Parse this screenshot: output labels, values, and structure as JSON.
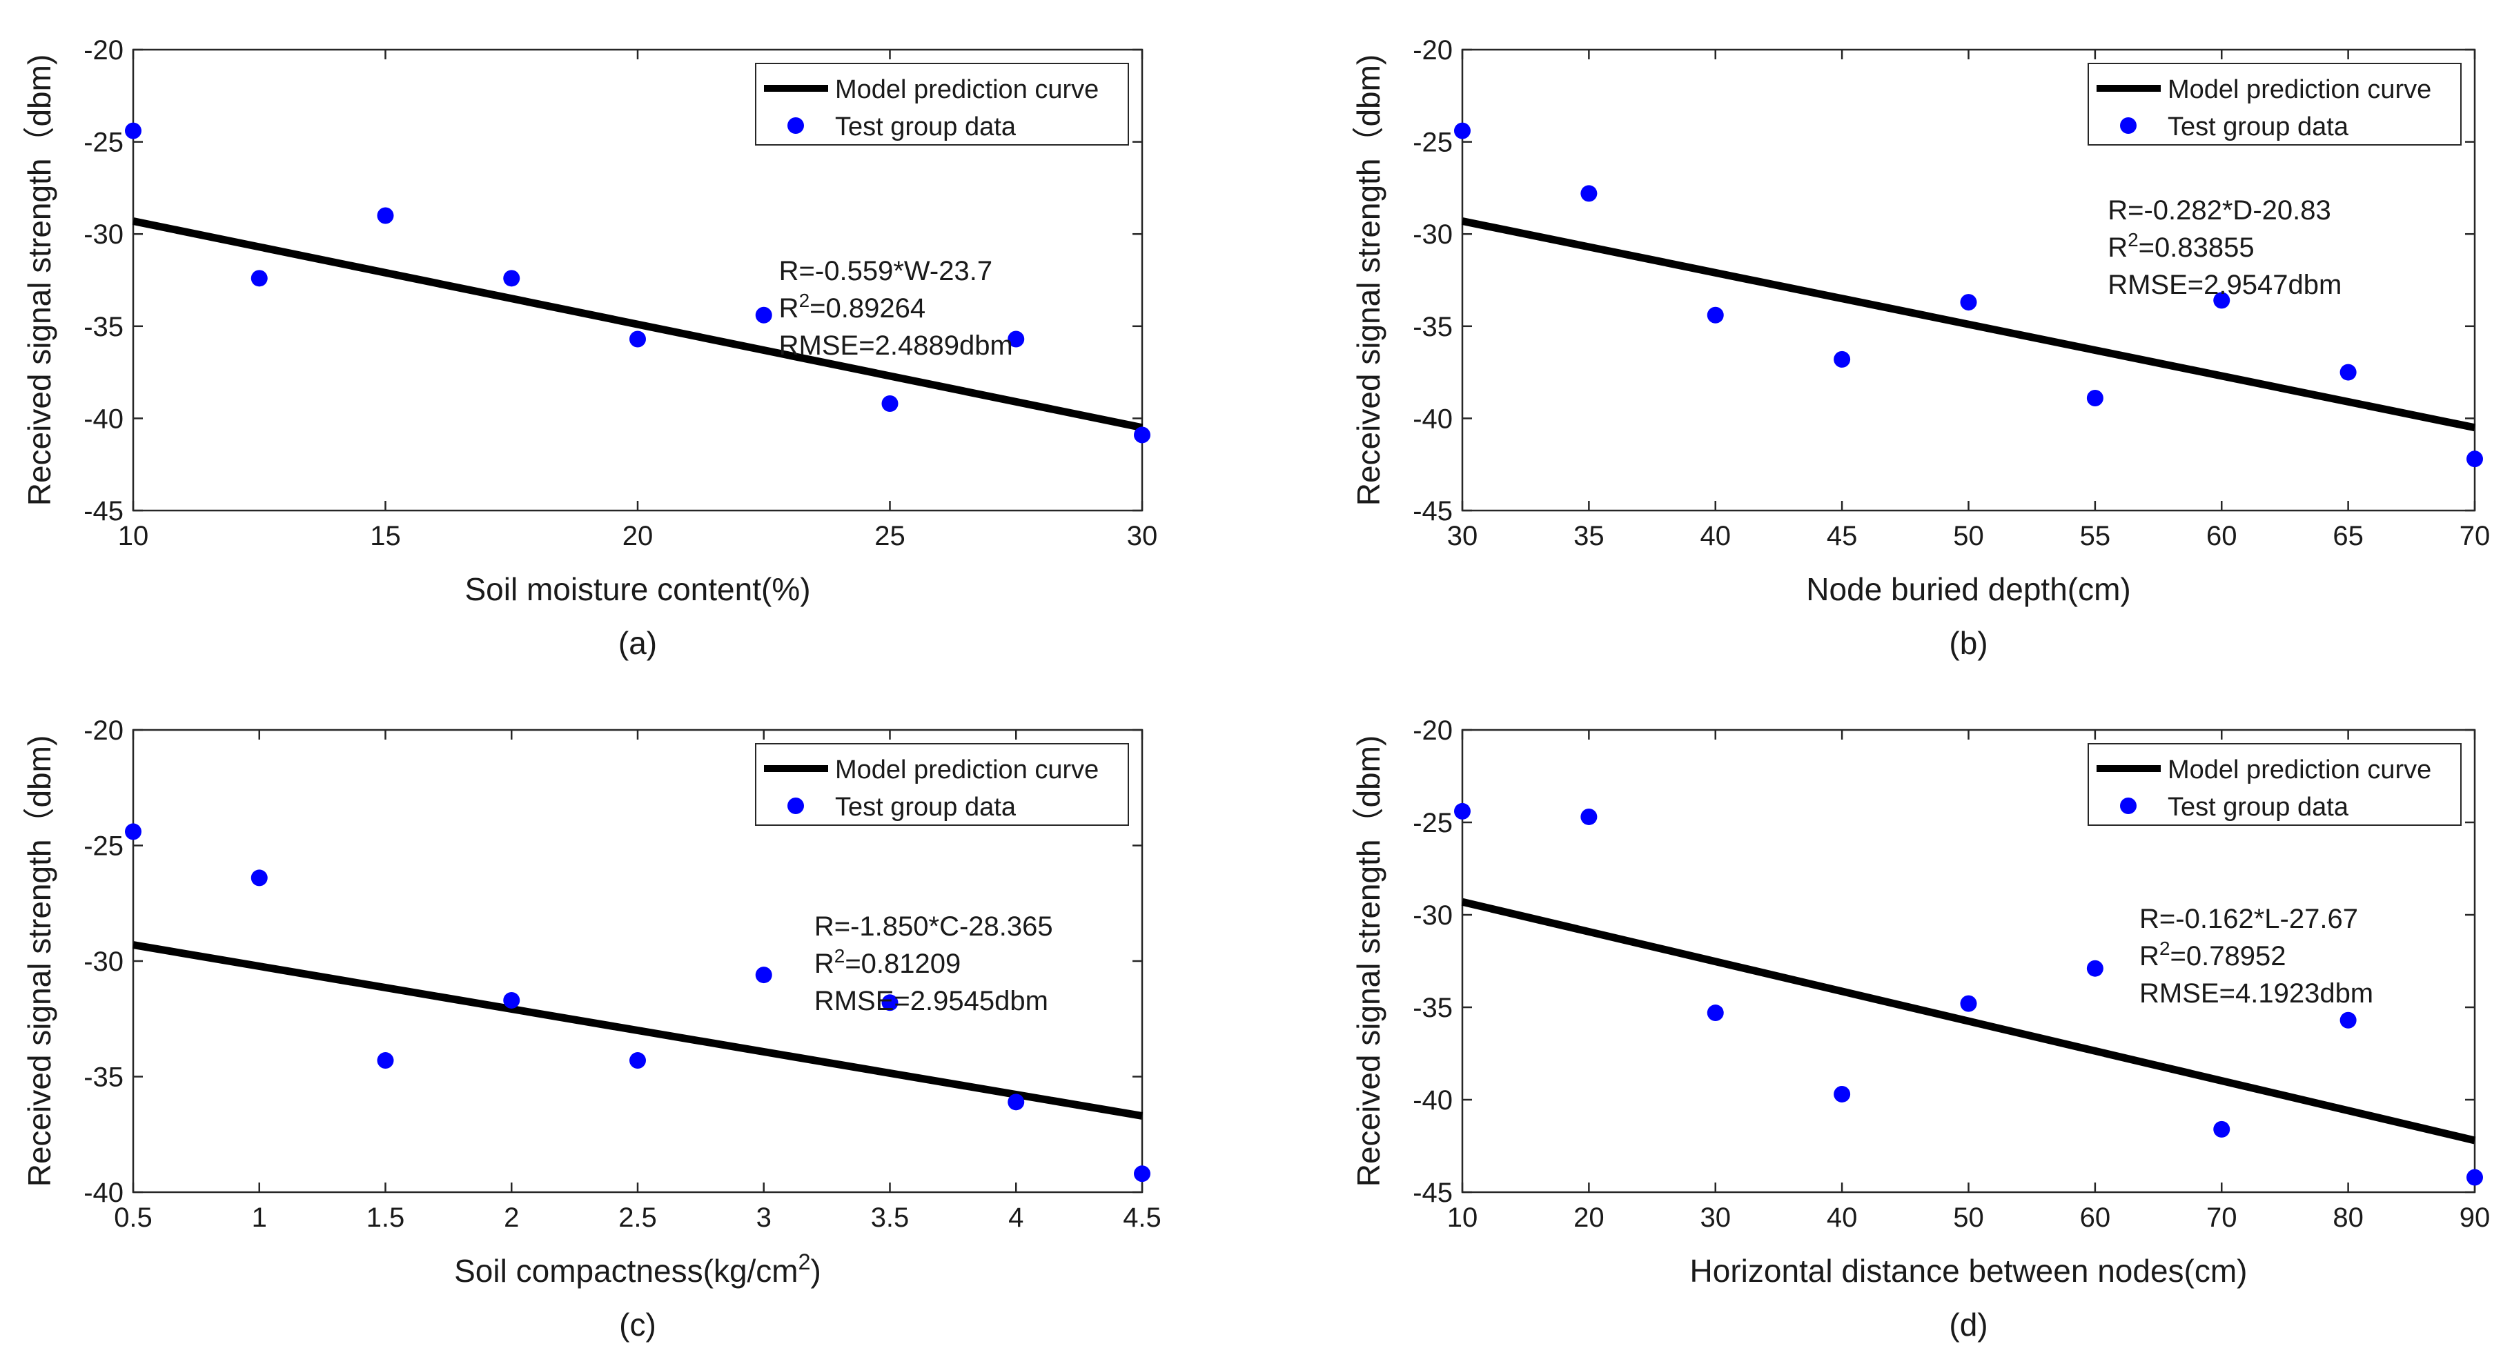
{
  "chart_data": [
    {
      "type": "scatter",
      "subtitle": "(a)",
      "xlabel": "Soil moisture content(%)",
      "ylabel": "Received signal strength（dbm)",
      "xlim": [
        10,
        30
      ],
      "ylim": [
        -45,
        -20
      ],
      "xticks": [
        10,
        15,
        20,
        25,
        30
      ],
      "yticks": [
        -20,
        -25,
        -30,
        -35,
        -40,
        -45
      ],
      "xtick_labels": [
        "10",
        "15",
        "20",
        "25",
        "30"
      ],
      "ytick_labels": [
        "-20",
        "-25",
        "-30",
        "-35",
        "-40",
        "-45"
      ],
      "grid": false,
      "legend": {
        "position": "top-right",
        "line_label": "Model prediction curve",
        "points_label": "Test group data"
      },
      "series": [
        {
          "name": "Model prediction curve",
          "kind": "line",
          "x": [
            10,
            30
          ],
          "y": [
            -29.3,
            -40.5
          ]
        },
        {
          "name": "Test group data",
          "kind": "scatter",
          "x": [
            10,
            12.5,
            15,
            17.5,
            20,
            22.5,
            25,
            27.5,
            30
          ],
          "y": [
            -24.4,
            -32.4,
            -29.0,
            -32.4,
            -35.7,
            -34.4,
            -39.2,
            -35.7,
            -40.9
          ]
        }
      ],
      "annotations": [
        "R=-0.559*W-23.7",
        "R²=0.89264",
        "RMSE=2.4889dbm"
      ],
      "annotation_anchor": [
        22.8,
        -32.5
      ]
    },
    {
      "type": "scatter",
      "subtitle": "(b)",
      "xlabel": "Node buried depth(cm)",
      "ylabel": "Received signal strength（dbm)",
      "xlim": [
        30,
        70
      ],
      "ylim": [
        -45,
        -20
      ],
      "xticks": [
        30,
        35,
        40,
        45,
        50,
        55,
        60,
        65,
        70
      ],
      "yticks": [
        -20,
        -25,
        -30,
        -35,
        -40,
        -45
      ],
      "xtick_labels": [
        "30",
        "35",
        "40",
        "45",
        "50",
        "55",
        "60",
        "65",
        "70"
      ],
      "ytick_labels": [
        "-20",
        "-25",
        "-30",
        "-35",
        "-40",
        "-45"
      ],
      "grid": false,
      "legend": {
        "position": "top-right",
        "line_label": "Model prediction curve",
        "points_label": "Test group data"
      },
      "series": [
        {
          "name": "Model prediction curve",
          "kind": "line",
          "x": [
            30,
            70
          ],
          "y": [
            -29.3,
            -40.5
          ]
        },
        {
          "name": "Test group data",
          "kind": "scatter",
          "x": [
            30,
            35,
            40,
            45,
            50,
            55,
            60,
            65,
            70
          ],
          "y": [
            -24.4,
            -27.8,
            -34.4,
            -36.8,
            -33.7,
            -38.9,
            -33.6,
            -37.5,
            -42.2
          ]
        }
      ],
      "annotations": [
        "R=-0.282*D-20.83",
        "R²=0.83855",
        "RMSE=2.9547dbm"
      ],
      "annotation_anchor": [
        55.5,
        -29.2
      ]
    },
    {
      "type": "scatter",
      "subtitle": "(c)",
      "xlabel": "Soil compactness(kg/cm²)",
      "ylabel": "Received signal strength（dbm)",
      "xlim": [
        0.5,
        4.5
      ],
      "ylim": [
        -40,
        -20
      ],
      "xticks": [
        0.5,
        1,
        1.5,
        2,
        2.5,
        3,
        3.5,
        4,
        4.5
      ],
      "yticks": [
        -20,
        -25,
        -30,
        -35,
        -40
      ],
      "xtick_labels": [
        "0.5",
        "1",
        "1.5",
        "2",
        "2.5",
        "3",
        "3.5",
        "4",
        "4.5"
      ],
      "ytick_labels": [
        "-20",
        "-25",
        "-30",
        "-35",
        "-40"
      ],
      "grid": false,
      "legend": {
        "position": "top-right",
        "line_label": "Model prediction curve",
        "points_label": "Test group data"
      },
      "series": [
        {
          "name": "Model prediction curve",
          "kind": "line",
          "x": [
            0.5,
            4.5
          ],
          "y": [
            -29.3,
            -36.7
          ]
        },
        {
          "name": "Test group data",
          "kind": "scatter",
          "x": [
            0.5,
            1,
            1.5,
            2,
            2.5,
            3,
            3.5,
            4,
            4.5
          ],
          "y": [
            -24.4,
            -26.4,
            -34.3,
            -31.7,
            -34.3,
            -30.6,
            -31.8,
            -36.1,
            -39.2
          ]
        }
      ],
      "annotations": [
        "R=-1.850*C-28.365",
        "R²=0.81209",
        "RMSE=2.9545dbm"
      ],
      "annotation_anchor": [
        3.2,
        -28.9
      ]
    },
    {
      "type": "scatter",
      "subtitle": "(d)",
      "xlabel": "Horizontal distance between nodes(cm)",
      "ylabel": "Received signal strength（dbm)",
      "xlim": [
        10,
        90
      ],
      "ylim": [
        -45,
        -20
      ],
      "xticks": [
        10,
        20,
        30,
        40,
        50,
        60,
        70,
        80,
        90
      ],
      "yticks": [
        -20,
        -25,
        -30,
        -35,
        -40,
        -45
      ],
      "xtick_labels": [
        "10",
        "20",
        "30",
        "40",
        "50",
        "60",
        "70",
        "80",
        "90"
      ],
      "ytick_labels": [
        "-20",
        "-25",
        "-30",
        "-35",
        "-40",
        "-45"
      ],
      "grid": false,
      "legend": {
        "position": "top-right",
        "line_label": "Model prediction curve",
        "points_label": "Test group data"
      },
      "series": [
        {
          "name": "Model prediction curve",
          "kind": "line",
          "x": [
            10,
            90
          ],
          "y": [
            -29.3,
            -42.2
          ]
        },
        {
          "name": "Test group data",
          "kind": "scatter",
          "x": [
            10,
            20,
            30,
            40,
            50,
            60,
            70,
            80,
            90
          ],
          "y": [
            -24.4,
            -24.7,
            -35.3,
            -39.7,
            -34.8,
            -32.9,
            -41.6,
            -35.7,
            -44.2
          ]
        }
      ],
      "annotations": [
        "R=-0.162*L-27.67",
        "R²=0.78952",
        "RMSE=4.1923dbm"
      ],
      "annotation_anchor": [
        63.5,
        -30.7
      ]
    }
  ],
  "colors": {
    "points": "#0000ff",
    "line": "#000000",
    "axes": "#262626"
  }
}
